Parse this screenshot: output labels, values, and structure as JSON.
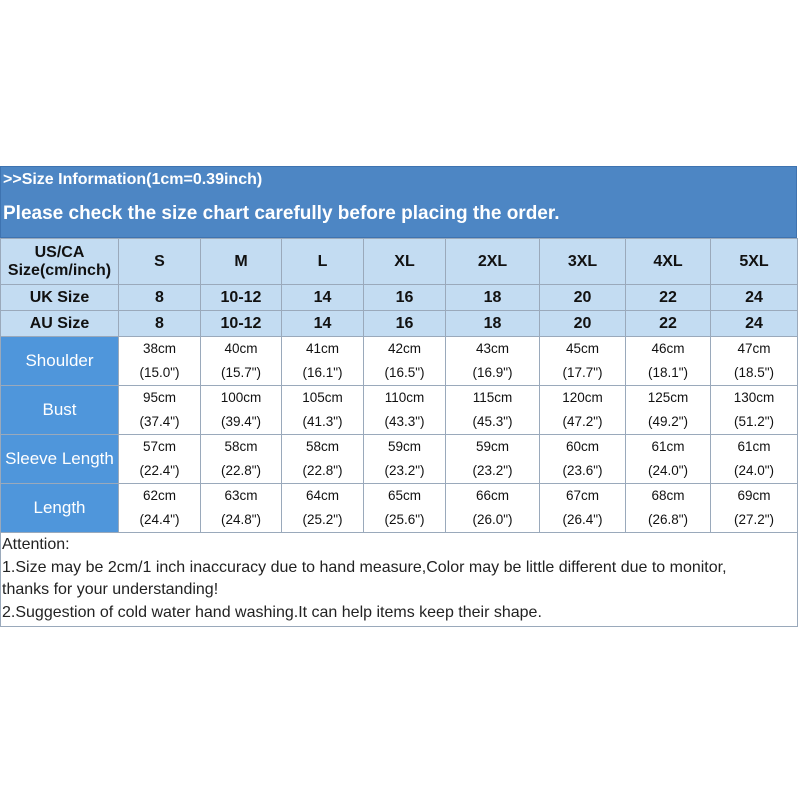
{
  "banner": {
    "line1": ">>Size Information(1cm=0.39inch)",
    "line2": "Please check the size chart carefully before placing the order."
  },
  "table": {
    "size_row": {
      "label_line1": "US/CA",
      "label_line2": "Size(cm/inch)",
      "values": [
        "S",
        "M",
        "L",
        "XL",
        "2XL",
        "3XL",
        "4XL",
        "5XL"
      ]
    },
    "uk_row": {
      "label": "UK Size",
      "values": [
        "8",
        "10-12",
        "14",
        "16",
        "18",
        "20",
        "22",
        "24"
      ]
    },
    "au_row": {
      "label": "AU Size",
      "values": [
        "8",
        "10-12",
        "14",
        "16",
        "18",
        "20",
        "22",
        "24"
      ]
    },
    "measurements": [
      {
        "label": "Shoulder",
        "cm": [
          "38cm",
          "40cm",
          "41cm",
          "42cm",
          "43cm",
          "45cm",
          "46cm",
          "47cm"
        ],
        "inch": [
          "(15.0\")",
          "(15.7\")",
          "(16.1\")",
          "(16.5\")",
          "(16.9\")",
          "(17.7\")",
          "(18.1\")",
          "(18.5\")"
        ]
      },
      {
        "label": "Bust",
        "cm": [
          "95cm",
          "100cm",
          "105cm",
          "110cm",
          "115cm",
          "120cm",
          "125cm",
          "130cm"
        ],
        "inch": [
          "(37.4\")",
          "(39.4\")",
          "(41.3\")",
          "(43.3\")",
          "(45.3\")",
          "(47.2\")",
          "(49.2\")",
          "(51.2\")"
        ]
      },
      {
        "label": "Sleeve Length",
        "cm": [
          "57cm",
          "58cm",
          "58cm",
          "59cm",
          "59cm",
          "60cm",
          "61cm",
          "61cm"
        ],
        "inch": [
          "(22.4\")",
          "(22.8\")",
          "(22.8\")",
          "(23.2\")",
          "(23.2\")",
          "(23.6\")",
          "(24.0\")",
          "(24.0\")"
        ]
      },
      {
        "label": "Length",
        "cm": [
          "62cm",
          "63cm",
          "64cm",
          "65cm",
          "66cm",
          "67cm",
          "68cm",
          "69cm"
        ],
        "inch": [
          "(24.4\")",
          "(24.8\")",
          "(25.2\")",
          "(25.6\")",
          "(26.0\")",
          "(26.4\")",
          "(26.8\")",
          "(27.2\")"
        ]
      }
    ]
  },
  "attention": {
    "title": "Attention:",
    "lines": [
      "1.Size may be 2cm/1 inch inaccuracy due to hand measure,Color may be little different due to monitor,",
      "thanks for your understanding!",
      "2.Suggestion of cold water hand washing.It can help items keep their shape."
    ]
  },
  "colors": {
    "banner": "#4d86c4",
    "header_cells": "#c3dcf2",
    "measurement_labels": "#4f96db",
    "grid": "#9aa9bb"
  }
}
